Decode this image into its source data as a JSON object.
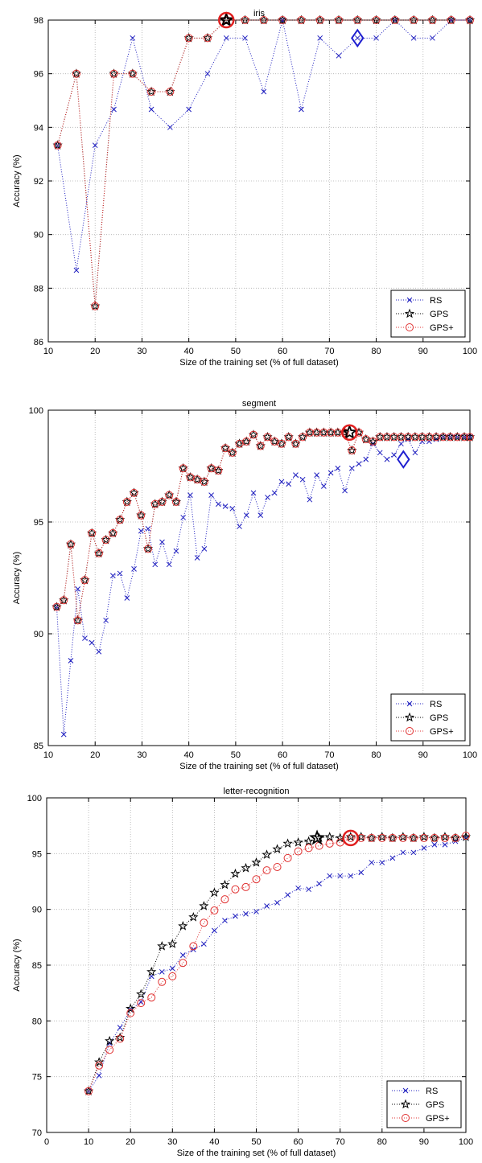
{
  "chart_data": [
    {
      "type": "line",
      "title": "iris",
      "xlabel": "Size of the training set (% of full dataset)",
      "ylabel": "Accuracy (%)",
      "xlim": [
        10,
        100
      ],
      "ylim": [
        86,
        98
      ],
      "xticks": [
        10,
        20,
        30,
        40,
        50,
        60,
        70,
        80,
        90,
        100
      ],
      "yticks": [
        86,
        88,
        90,
        92,
        94,
        96,
        98
      ],
      "grid": true,
      "legend_position": "bottom-right",
      "series": [
        {
          "name": "RS",
          "color": "#1f1fbf",
          "marker": "x",
          "x": [
            12,
            16,
            20,
            24,
            28,
            32,
            36,
            40,
            44,
            48,
            52,
            56,
            60,
            64,
            68,
            72,
            76,
            80,
            84,
            88,
            92,
            96,
            100
          ],
          "y": [
            93.33,
            88.67,
            93.33,
            94.67,
            97.33,
            94.67,
            94.0,
            94.67,
            96.0,
            97.33,
            97.33,
            95.33,
            98.0,
            94.67,
            97.33,
            96.67,
            97.33,
            97.33,
            98.0,
            97.33,
            97.33,
            98.0,
            98.0
          ],
          "selected": {
            "x": 76,
            "y": 97.33,
            "marker": "diamond"
          }
        },
        {
          "name": "GPS",
          "color": "#000000",
          "marker": "pentagram",
          "x": [
            12,
            16,
            20,
            24,
            28,
            32,
            36,
            40,
            44,
            48,
            52,
            56,
            60,
            64,
            68,
            72,
            76,
            80,
            84,
            88,
            92,
            96,
            100
          ],
          "y": [
            93.33,
            96.0,
            87.33,
            96.0,
            96.0,
            95.33,
            95.33,
            97.33,
            97.33,
            98.0,
            98.0,
            98.0,
            98.0,
            98.0,
            98.0,
            98.0,
            98.0,
            98.0,
            98.0,
            98.0,
            98.0,
            98.0,
            98.0
          ],
          "selected": {
            "x": 48,
            "y": 98.0,
            "marker": "pentagram"
          }
        },
        {
          "name": "GPS+",
          "color": "#e03030",
          "marker": "circle",
          "x": [
            12,
            16,
            20,
            24,
            28,
            32,
            36,
            40,
            44,
            48,
            52,
            56,
            60,
            64,
            68,
            72,
            76,
            80,
            84,
            88,
            92,
            96,
            100
          ],
          "y": [
            93.33,
            96.0,
            87.33,
            96.0,
            96.0,
            95.33,
            95.33,
            97.33,
            97.33,
            98.0,
            98.0,
            98.0,
            98.0,
            98.0,
            98.0,
            98.0,
            98.0,
            98.0,
            98.0,
            98.0,
            98.0,
            98.0,
            98.0
          ],
          "selected": {
            "x": 48,
            "y": 98.0,
            "marker": "circle"
          }
        }
      ]
    },
    {
      "type": "line",
      "title": "segment",
      "xlabel": "Size of the training set (% of full dataset)",
      "ylabel": "Accuracy (%)",
      "xlim": [
        10,
        100
      ],
      "ylim": [
        85,
        100
      ],
      "xticks": [
        10,
        20,
        30,
        40,
        50,
        60,
        70,
        80,
        90,
        100
      ],
      "yticks": [
        85,
        90,
        95,
        100
      ],
      "grid": true,
      "legend_position": "bottom-right",
      "series": [
        {
          "name": "RS",
          "color": "#1f1fbf",
          "marker": "x",
          "x": [
            11.8,
            13.3,
            14.8,
            16.3,
            17.8,
            19.3,
            20.8,
            22.3,
            23.8,
            25.3,
            26.8,
            28.3,
            29.8,
            31.3,
            32.8,
            34.3,
            35.8,
            37.3,
            38.8,
            40.3,
            41.8,
            43.3,
            44.8,
            46.3,
            47.8,
            49.3,
            50.8,
            52.3,
            53.8,
            55.3,
            56.8,
            58.3,
            59.8,
            61.3,
            62.8,
            64.3,
            65.8,
            67.3,
            68.8,
            70.3,
            71.8,
            73.3,
            74.8,
            76.3,
            77.8,
            79.3,
            80.8,
            82.3,
            83.8,
            85.3,
            86.8,
            88.3,
            89.8,
            91.3,
            92.8,
            94.3,
            95.8,
            97.3,
            98.8,
            100.0
          ],
          "y": [
            91.2,
            85.5,
            88.8,
            92.0,
            89.8,
            89.6,
            89.2,
            90.6,
            92.6,
            92.7,
            91.6,
            92.9,
            94.6,
            94.7,
            93.1,
            94.1,
            93.1,
            93.7,
            95.2,
            96.2,
            93.4,
            93.8,
            96.2,
            95.8,
            95.7,
            95.6,
            94.8,
            95.3,
            96.3,
            95.3,
            96.1,
            96.3,
            96.8,
            96.7,
            97.1,
            96.9,
            96.0,
            97.1,
            96.6,
            97.2,
            97.4,
            96.4,
            97.4,
            97.6,
            97.8,
            98.5,
            98.1,
            97.8,
            98.0,
            98.5,
            98.7,
            98.1,
            98.6,
            98.6,
            98.7,
            98.8,
            98.8,
            98.8,
            98.8,
            98.8
          ],
          "selected": {
            "x": 85.8,
            "y": 97.8,
            "marker": "diamond"
          }
        },
        {
          "name": "GPS",
          "color": "#000000",
          "marker": "pentagram",
          "x": [
            11.8,
            13.3,
            14.8,
            16.3,
            17.8,
            19.3,
            20.8,
            22.3,
            23.8,
            25.3,
            26.8,
            28.3,
            29.8,
            31.3,
            32.8,
            34.3,
            35.8,
            37.3,
            38.8,
            40.3,
            41.8,
            43.3,
            44.8,
            46.3,
            47.8,
            49.3,
            50.8,
            52.3,
            53.8,
            55.3,
            56.8,
            58.3,
            59.8,
            61.3,
            62.8,
            64.3,
            65.8,
            67.3,
            68.8,
            70.3,
            71.8,
            73.3,
            74.8,
            76.3,
            77.8,
            79.3,
            80.8,
            82.3,
            83.8,
            85.3,
            86.8,
            88.3,
            89.8,
            91.3,
            92.8,
            94.3,
            95.8,
            97.3,
            98.8,
            100.0
          ],
          "y": [
            91.2,
            91.5,
            94.0,
            90.6,
            92.4,
            94.5,
            93.6,
            94.2,
            94.5,
            95.1,
            95.9,
            96.3,
            95.3,
            93.8,
            95.8,
            95.9,
            96.2,
            95.9,
            97.4,
            97.0,
            96.9,
            96.8,
            97.4,
            97.3,
            98.3,
            98.1,
            98.5,
            98.6,
            98.9,
            98.4,
            98.8,
            98.6,
            98.5,
            98.8,
            98.5,
            98.8,
            99.0,
            99.0,
            99.0,
            99.0,
            99.0,
            99.0,
            98.2,
            99.0,
            98.7,
            98.6,
            98.8,
            98.8,
            98.8,
            98.8,
            98.8,
            98.8,
            98.8,
            98.8,
            98.8,
            98.8,
            98.8,
            98.8,
            98.8,
            98.8
          ],
          "selected": {
            "x": 74.3,
            "y": 99.0,
            "marker": "pentagram"
          }
        },
        {
          "name": "GPS+",
          "color": "#e03030",
          "marker": "circle",
          "x": [
            11.8,
            13.3,
            14.8,
            16.3,
            17.8,
            19.3,
            20.8,
            22.3,
            23.8,
            25.3,
            26.8,
            28.3,
            29.8,
            31.3,
            32.8,
            34.3,
            35.8,
            37.3,
            38.8,
            40.3,
            41.8,
            43.3,
            44.8,
            46.3,
            47.8,
            49.3,
            50.8,
            52.3,
            53.8,
            55.3,
            56.8,
            58.3,
            59.8,
            61.3,
            62.8,
            64.3,
            65.8,
            67.3,
            68.8,
            70.3,
            71.8,
            73.3,
            74.8,
            76.3,
            77.8,
            79.3,
            80.8,
            82.3,
            83.8,
            85.3,
            86.8,
            88.3,
            89.8,
            91.3,
            92.8,
            94.3,
            95.8,
            97.3,
            98.8,
            100.0
          ],
          "y": [
            91.2,
            91.5,
            94.0,
            90.6,
            92.4,
            94.5,
            93.6,
            94.2,
            94.5,
            95.1,
            95.9,
            96.3,
            95.3,
            93.8,
            95.8,
            95.9,
            96.2,
            95.9,
            97.4,
            97.0,
            96.9,
            96.8,
            97.4,
            97.3,
            98.3,
            98.1,
            98.5,
            98.6,
            98.9,
            98.4,
            98.8,
            98.6,
            98.5,
            98.8,
            98.5,
            98.8,
            99.0,
            99.0,
            99.0,
            99.0,
            99.0,
            99.0,
            98.2,
            99.0,
            98.7,
            98.6,
            98.8,
            98.8,
            98.8,
            98.8,
            98.8,
            98.8,
            98.8,
            98.8,
            98.8,
            98.8,
            98.8,
            98.8,
            98.8,
            98.8
          ],
          "selected": {
            "x": 74.3,
            "y": 99.0,
            "marker": "circle"
          }
        }
      ]
    },
    {
      "type": "line",
      "title": "letter-recognition",
      "xlabel": "Size of the training set (% of full dataset)",
      "ylabel": "Accuracy (%)",
      "xlim": [
        0,
        100
      ],
      "ylim": [
        70,
        100
      ],
      "xticks": [
        0,
        10,
        20,
        30,
        40,
        50,
        60,
        70,
        80,
        90,
        100
      ],
      "yticks": [
        70,
        75,
        80,
        85,
        90,
        95,
        100
      ],
      "grid": true,
      "legend_position": "bottom-right",
      "series": [
        {
          "name": "RS",
          "color": "#1f1fbf",
          "marker": "x",
          "x": [
            10.0,
            12.5,
            15.0,
            17.5,
            20.0,
            22.5,
            25.0,
            27.5,
            30.0,
            32.5,
            35.0,
            37.5,
            40.0,
            42.5,
            45.0,
            47.5,
            50.0,
            52.5,
            55.0,
            57.5,
            60.0,
            62.5,
            65.0,
            67.5,
            70.0,
            72.5,
            75.0,
            77.5,
            80.0,
            82.5,
            85.0,
            87.5,
            90.0,
            92.5,
            95.0,
            97.5,
            100.0
          ],
          "y": [
            73.7,
            75.1,
            78.0,
            79.4,
            81.0,
            81.7,
            84.0,
            84.4,
            84.7,
            85.9,
            86.4,
            86.9,
            88.1,
            89.0,
            89.4,
            89.6,
            89.8,
            90.3,
            90.6,
            91.3,
            91.9,
            91.8,
            92.3,
            93.0,
            93.0,
            93.0,
            93.3,
            94.2,
            94.2,
            94.6,
            95.1,
            95.1,
            95.5,
            95.8,
            95.8,
            96.1,
            96.4
          ]
        },
        {
          "name": "GPS",
          "color": "#000000",
          "marker": "pentagram",
          "x": [
            10.0,
            12.5,
            15.0,
            17.5,
            20.0,
            22.5,
            25.0,
            27.5,
            30.0,
            32.5,
            35.0,
            37.5,
            40.0,
            42.5,
            45.0,
            47.5,
            50.0,
            52.5,
            55.0,
            57.5,
            60.0,
            62.5,
            65.0,
            67.5,
            70.0,
            72.5,
            75.0,
            77.5,
            80.0,
            82.5,
            85.0,
            87.5,
            90.0,
            92.5,
            95.0,
            97.5,
            100.0
          ],
          "y": [
            73.7,
            76.3,
            78.2,
            78.5,
            81.1,
            82.4,
            84.4,
            86.7,
            86.9,
            88.5,
            89.3,
            90.3,
            91.5,
            92.2,
            93.2,
            93.7,
            94.2,
            94.9,
            95.4,
            95.9,
            96.0,
            96.1,
            96.4,
            96.5,
            96.4,
            96.5,
            96.5,
            96.4,
            96.5,
            96.4,
            96.5,
            96.4,
            96.5,
            96.4,
            96.5,
            96.4,
            96.5
          ],
          "selected": {
            "x": 64.5,
            "y": 96.4,
            "marker": "pentagram"
          }
        },
        {
          "name": "GPS+",
          "color": "#e03030",
          "marker": "circle",
          "x": [
            10.0,
            12.5,
            15.0,
            17.5,
            20.0,
            22.5,
            25.0,
            27.5,
            30.0,
            32.5,
            35.0,
            37.5,
            40.0,
            42.5,
            45.0,
            47.5,
            50.0,
            52.5,
            55.0,
            57.5,
            60.0,
            62.5,
            65.0,
            67.5,
            70.0,
            72.5,
            75.0,
            77.5,
            80.0,
            82.5,
            85.0,
            87.5,
            90.0,
            92.5,
            95.0,
            97.5,
            100.0
          ],
          "y": [
            73.7,
            76.0,
            77.4,
            78.4,
            80.7,
            81.6,
            82.1,
            83.5,
            84.0,
            85.2,
            86.7,
            88.8,
            89.9,
            90.9,
            91.8,
            92.0,
            92.7,
            93.5,
            93.8,
            94.6,
            95.2,
            95.5,
            95.7,
            95.9,
            96.0,
            96.4,
            96.4,
            96.4,
            96.4,
            96.4,
            96.4,
            96.4,
            96.4,
            96.4,
            96.4,
            96.4,
            96.6
          ],
          "selected": {
            "x": 72.5,
            "y": 96.4,
            "marker": "circle"
          }
        }
      ]
    }
  ]
}
